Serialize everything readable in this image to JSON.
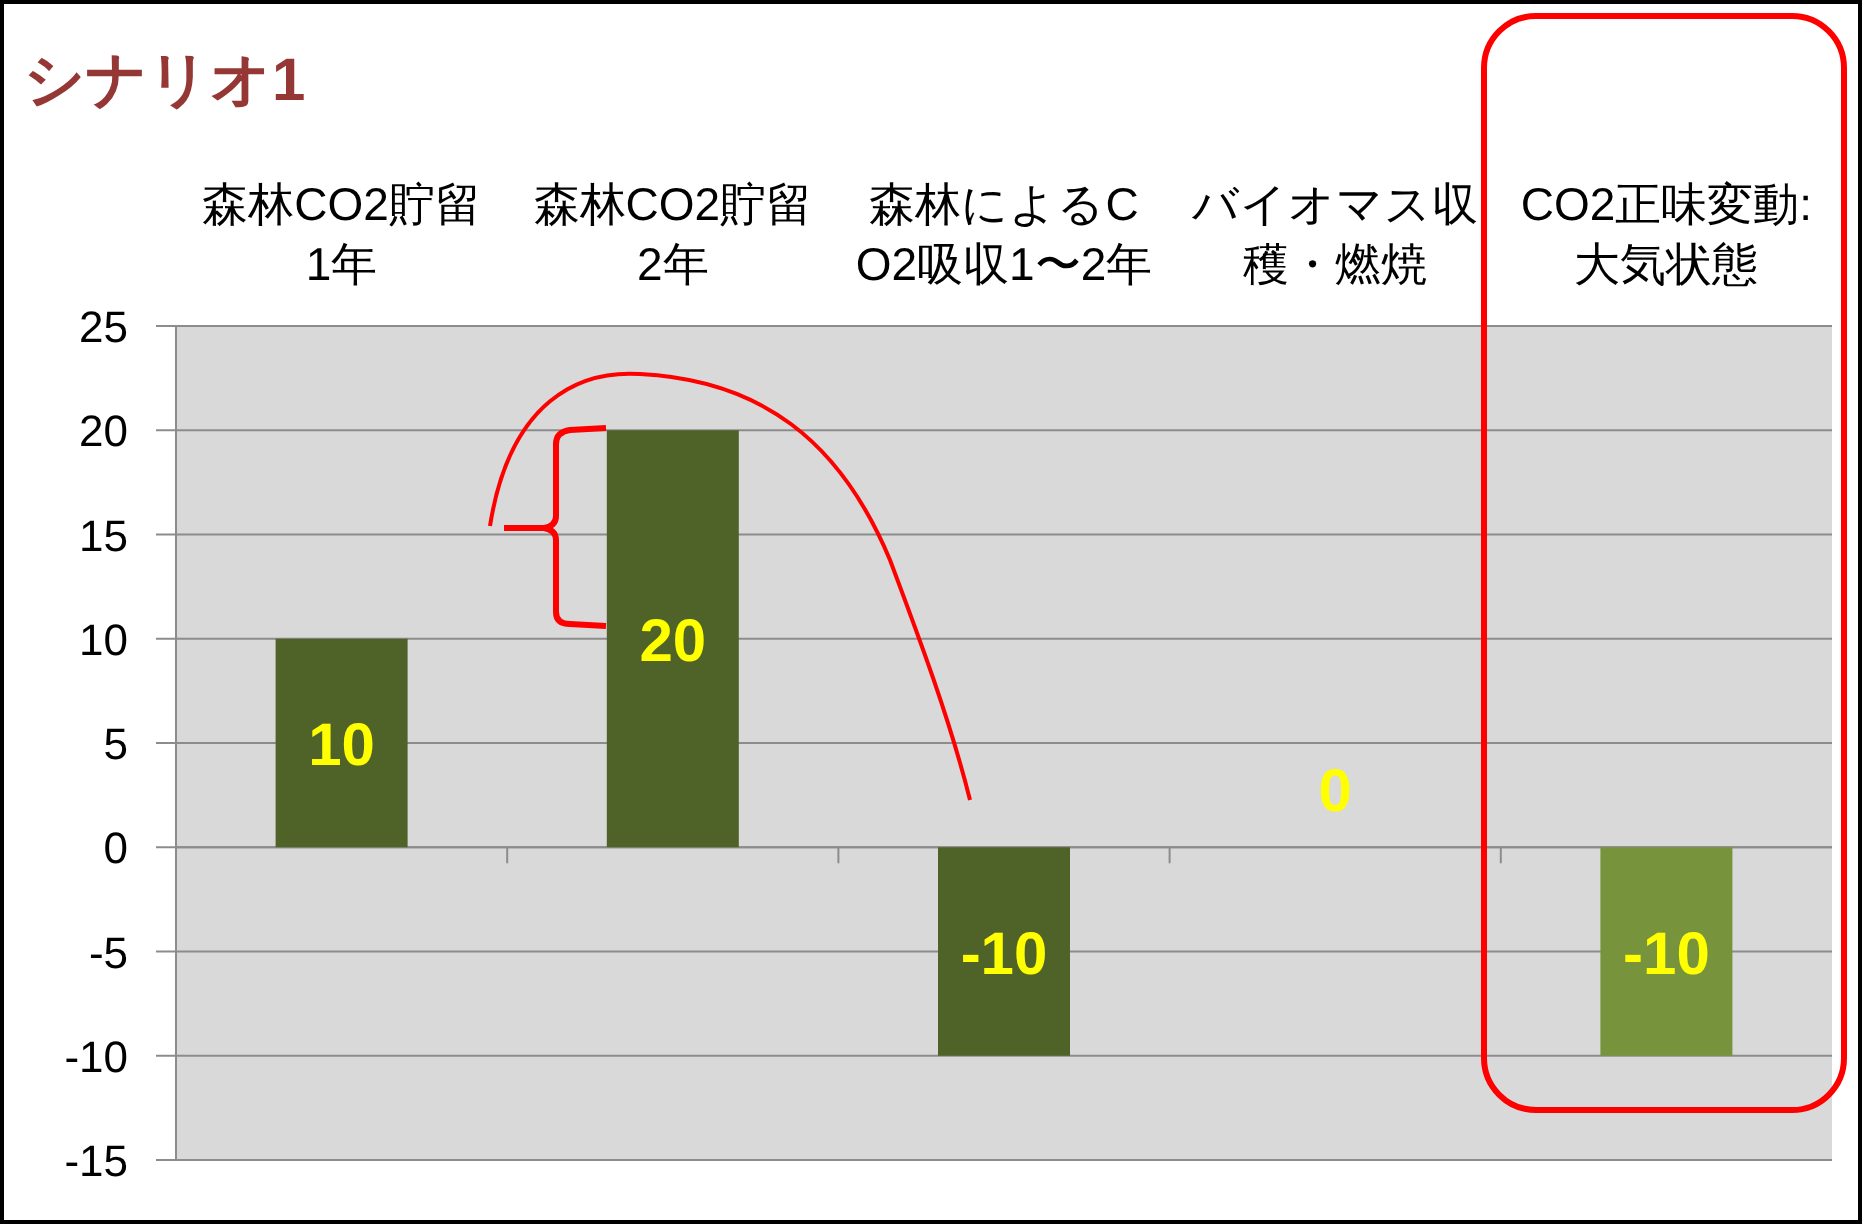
{
  "chart_data": {
    "type": "bar",
    "title": "シナリオ1",
    "categories": [
      "森林CO2貯留1年",
      "森林CO2貯留2年",
      "森林によるCO2吸収1〜2年",
      "バイオマス収穫・燃焼",
      "CO2正味変動:大気状態"
    ],
    "values": [
      10,
      20,
      -10,
      0,
      -10
    ],
    "colors": [
      "#4f6228",
      "#4f6228",
      "#4f6228",
      "#4f6228",
      "#77933c"
    ],
    "ylim": [
      -15,
      25
    ],
    "yticks": [
      -15,
      -10,
      -5,
      0,
      5,
      10,
      15,
      20,
      25
    ],
    "grid": "y",
    "data_labels": true
  }
}
